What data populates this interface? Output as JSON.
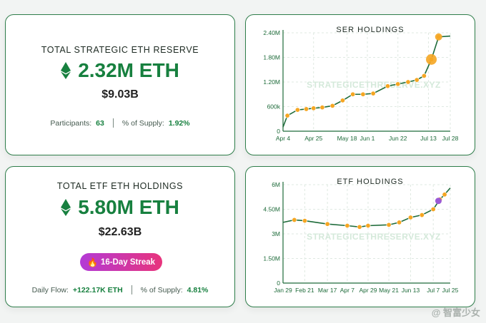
{
  "reserve": {
    "title": "TOTAL STRATEGIC ETH RESERVE",
    "eth_amount": "2.32M ETH",
    "usd_value": "$9.03B",
    "participants_label": "Participants:",
    "participants_value": "63",
    "supply_label": "% of Supply:",
    "supply_value": "1.92%"
  },
  "etf": {
    "title": "TOTAL ETF ETH HOLDINGS",
    "eth_amount": "5.80M ETH",
    "usd_value": "$22.63B",
    "streak": "16-Day Streak",
    "flow_label": "Daily Flow:",
    "flow_value": "+122.17K ETH",
    "supply_label": "% of Supply:",
    "supply_value": "4.81%"
  },
  "watermark": "@ 智富少女",
  "colors": {
    "accent": "#17803f",
    "line": "#1e6b3a",
    "dot": "#f5a623",
    "purple": "#9b59d6"
  },
  "chart_data": [
    {
      "type": "line",
      "title": "SER HOLDINGS",
      "watermark": "STRATEGICETHRESERVE.XYZ",
      "x_ticks": [
        "Apr 4",
        "Apr 25",
        "May 18",
        "Jun 1",
        "Jun 22",
        "Jul 13",
        "Jul 28"
      ],
      "y_ticks": [
        "0",
        "600k",
        "1.20M",
        "1.80M",
        "2.40M"
      ],
      "ylim": [
        0,
        2400000
      ],
      "grid": true,
      "points": [
        {
          "x": "Apr 4",
          "y": 100000
        },
        {
          "x": "Apr 7",
          "y": 380000
        },
        {
          "x": "Apr 14",
          "y": 520000
        },
        {
          "x": "Apr 20",
          "y": 540000
        },
        {
          "x": "Apr 25",
          "y": 560000
        },
        {
          "x": "May 1",
          "y": 580000
        },
        {
          "x": "May 8",
          "y": 620000
        },
        {
          "x": "May 15",
          "y": 750000
        },
        {
          "x": "May 22",
          "y": 900000
        },
        {
          "x": "May 29",
          "y": 900000
        },
        {
          "x": "Jun 5",
          "y": 920000
        },
        {
          "x": "Jun 15",
          "y": 1100000
        },
        {
          "x": "Jun 22",
          "y": 1150000
        },
        {
          "x": "Jun 29",
          "y": 1200000
        },
        {
          "x": "Jul 5",
          "y": 1250000
        },
        {
          "x": "Jul 10",
          "y": 1350000
        },
        {
          "x": "Jul 15",
          "y": 1750000
        },
        {
          "x": "Jul 20",
          "y": 2300000
        },
        {
          "x": "Jul 28",
          "y": 2320000
        }
      ]
    },
    {
      "type": "line",
      "title": "ETF HOLDINGS",
      "watermark": "STRATEGICETHRESERVE.XYZ",
      "x_ticks": [
        "Jan 29",
        "Feb 21",
        "Mar 17",
        "Apr 7",
        "Apr 29",
        "May 21",
        "Jun 13",
        "Jul 7",
        "Jul 25"
      ],
      "y_ticks": [
        "0",
        "1.50M",
        "3M",
        "4.50M",
        "6M"
      ],
      "ylim": [
        0,
        6000000
      ],
      "grid": true,
      "points": [
        {
          "x": "Jan 29",
          "y": 3700000
        },
        {
          "x": "Feb 10",
          "y": 3850000
        },
        {
          "x": "Feb 21",
          "y": 3800000
        },
        {
          "x": "Mar 17",
          "y": 3600000
        },
        {
          "x": "Apr 7",
          "y": 3500000
        },
        {
          "x": "Apr 20",
          "y": 3420000
        },
        {
          "x": "Apr 29",
          "y": 3500000
        },
        {
          "x": "May 21",
          "y": 3550000
        },
        {
          "x": "Jun 1",
          "y": 3700000
        },
        {
          "x": "Jun 13",
          "y": 4000000
        },
        {
          "x": "Jun 25",
          "y": 4150000
        },
        {
          "x": "Jul 7",
          "y": 4500000
        },
        {
          "x": "Jul 14",
          "y": 5100000
        },
        {
          "x": "Jul 19",
          "y": 5400000
        },
        {
          "x": "Jul 25",
          "y": 5800000
        }
      ]
    }
  ]
}
